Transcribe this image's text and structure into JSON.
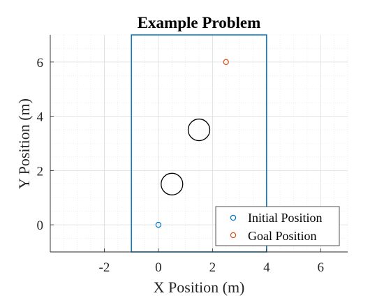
{
  "chart_data": {
    "type": "scatter",
    "title": "Example Problem",
    "xlabel": "X Position (m)",
    "ylabel": "Y Position (m)",
    "xlim": [
      -4,
      7
    ],
    "ylim": [
      -1,
      7
    ],
    "xticks": [
      -2,
      0,
      2,
      4,
      6
    ],
    "yticks": [
      0,
      2,
      4,
      6
    ],
    "xtick_labels": [
      "-2",
      "0",
      "2",
      "4",
      "6"
    ],
    "ytick_labels": [
      "0",
      "2",
      "4",
      "6"
    ],
    "grid": true,
    "minor_grid": true,
    "legend_position": "bottom-right",
    "series": [
      {
        "name": "Initial Position",
        "x": [
          0
        ],
        "y": [
          0
        ],
        "color": "#0072BD"
      },
      {
        "name": "Goal Position",
        "x": [
          2.5
        ],
        "y": [
          6
        ],
        "color": "#D95319"
      }
    ],
    "obstacles": [
      {
        "cx": 0.5,
        "cy": 1.5,
        "r": 0.4
      },
      {
        "cx": 1.5,
        "cy": 3.5,
        "r": 0.4
      }
    ],
    "boundary": {
      "x": [
        -1,
        4
      ],
      "y": [
        -1,
        7
      ],
      "color": "#0072BD"
    }
  }
}
